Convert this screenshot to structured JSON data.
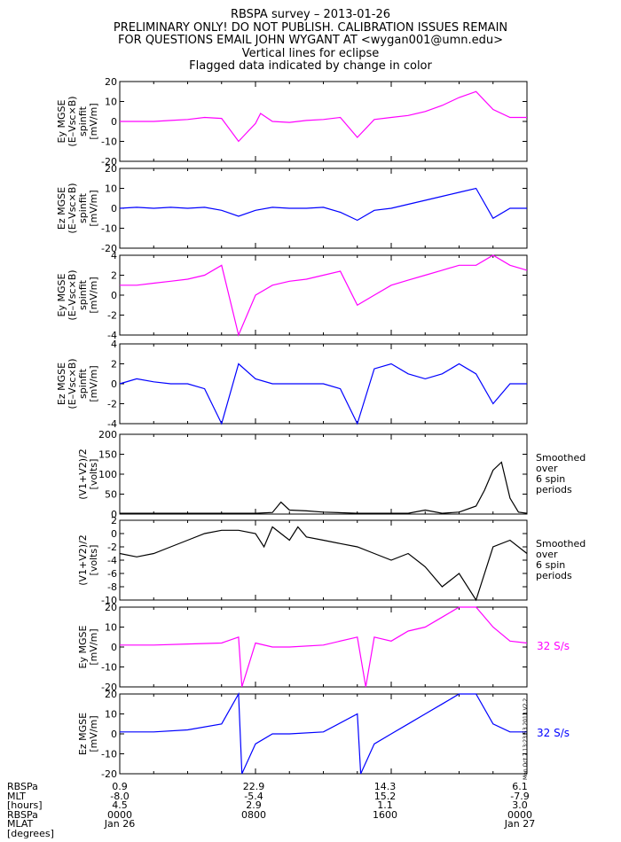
{
  "header": {
    "title": "RBSPA survey  – 2013-01-26",
    "line2": "PRELIMINARY ONLY! DO NOT PUBLISH. CALIBRATION ISSUES REMAIN",
    "line3": "FOR QUESTIONS EMAIL JOHN WYGANT AT <wygan001@umn.edu>",
    "line4": "Vertical lines for eclipse",
    "line5": "Flagged data indicated by change in color"
  },
  "colors": {
    "magenta": "#ff00ff",
    "blue": "#0000ff",
    "black": "#000000"
  },
  "chart_data": [
    {
      "type": "line",
      "ylabel": "Ey MGSE\n(E–Vsc×B)\nspinfit\n[mV/m]",
      "yticks": [
        -20,
        -10,
        0,
        10,
        20
      ],
      "ylim": [
        -20,
        20
      ],
      "color": "magenta",
      "series": [
        {
          "x": [
            0,
            1,
            2,
            3,
            4,
            5,
            6,
            7,
            8,
            8.3,
            9,
            10,
            11,
            12,
            13,
            14,
            15,
            16,
            17,
            18,
            19,
            20,
            21,
            22,
            23,
            24
          ],
          "values": [
            0,
            0,
            0,
            0.5,
            1,
            2,
            1.5,
            -10,
            -1,
            4,
            0,
            -0.5,
            0.5,
            1,
            2,
            -8,
            1,
            2,
            3,
            5,
            8,
            12,
            15,
            6,
            2,
            2
          ]
        }
      ]
    },
    {
      "type": "line",
      "ylabel": "Ez MGSE\n(E–Vsc×B)\nspinfit\n[mV/m]",
      "yticks": [
        -20,
        -10,
        0,
        10,
        20
      ],
      "ylim": [
        -20,
        20
      ],
      "color": "blue",
      "series": [
        {
          "x": [
            0,
            1,
            2,
            3,
            4,
            5,
            6,
            7,
            8,
            9,
            10,
            11,
            12,
            13,
            14,
            15,
            16,
            17,
            18,
            19,
            20,
            21,
            22,
            23,
            24
          ],
          "values": [
            0,
            0.5,
            0,
            0.5,
            0,
            0.5,
            -1,
            -4,
            -1,
            0.5,
            0,
            0,
            0.5,
            -2,
            -6,
            -1,
            0,
            2,
            4,
            6,
            8,
            10,
            -5,
            0,
            0
          ]
        }
      ]
    },
    {
      "type": "line",
      "ylabel": "Ey MGSE\n(E–Vsc×B)\nspinfit\n[mV/m]",
      "yticks": [
        -4,
        -2,
        0,
        2,
        4
      ],
      "ylim": [
        -4,
        4
      ],
      "color": "magenta",
      "series": [
        {
          "x": [
            0,
            1,
            2,
            3,
            4,
            5,
            6,
            7,
            8,
            9,
            10,
            11,
            12,
            13,
            14,
            15,
            16,
            17,
            18,
            19,
            20,
            21,
            22,
            23,
            24
          ],
          "values": [
            1,
            1,
            1.2,
            1.4,
            1.6,
            2,
            3,
            -4,
            0,
            1,
            1.4,
            1.6,
            2,
            2.4,
            -1,
            0,
            1,
            1.5,
            2,
            2.5,
            3,
            3,
            4,
            3,
            2.5
          ]
        }
      ]
    },
    {
      "type": "line",
      "ylabel": "Ez MGSE\n(E–Vsc×B)\nspinfit\n[mV/m]",
      "yticks": [
        -4,
        -2,
        0,
        2,
        4
      ],
      "ylim": [
        -4,
        4
      ],
      "color": "blue",
      "series": [
        {
          "x": [
            0,
            1,
            2,
            3,
            4,
            5,
            6,
            7,
            8,
            9,
            10,
            11,
            12,
            13,
            14,
            15,
            16,
            17,
            18,
            19,
            20,
            21,
            22,
            23,
            24
          ],
          "values": [
            0,
            0.5,
            0.2,
            0,
            0,
            -0.5,
            -4,
            2,
            0.5,
            0,
            0,
            0,
            0,
            -0.5,
            -4,
            1.5,
            2,
            1,
            0.5,
            1,
            2,
            1,
            -2,
            0,
            0
          ]
        }
      ]
    },
    {
      "type": "line",
      "ylabel": "(V1+V2)/2\n[volts]",
      "yticks": [
        0,
        50,
        100,
        150,
        200
      ],
      "ylim": [
        0,
        200
      ],
      "color": "black",
      "annotation": "Smoothed\nover\n6 spin\nperiods",
      "series": [
        {
          "x": [
            0,
            2,
            4,
            6,
            8,
            9,
            9.5,
            10,
            11,
            12,
            14,
            16,
            17,
            18,
            19,
            20,
            21,
            21.5,
            22,
            22.5,
            23,
            23.5,
            24
          ],
          "values": [
            2,
            2,
            2,
            2,
            2,
            4,
            30,
            10,
            8,
            5,
            2,
            2,
            2,
            10,
            2,
            5,
            20,
            60,
            110,
            130,
            40,
            5,
            2
          ]
        }
      ]
    },
    {
      "type": "line",
      "ylabel": "(V1+V2)/2\n[volts]",
      "yticks": [
        -10,
        -8,
        -6,
        -4,
        -2,
        0,
        2
      ],
      "ylim": [
        -10,
        2
      ],
      "color": "black",
      "annotation": "Smoothed\nover\n6 spin\nperiods",
      "series": [
        {
          "x": [
            0,
            1,
            2,
            3,
            4,
            5,
            6,
            7,
            8,
            8.5,
            9,
            9.5,
            10,
            10.5,
            11,
            12,
            13,
            14,
            15,
            16,
            17,
            18,
            19,
            20,
            21,
            22,
            23,
            24
          ],
          "values": [
            -3,
            -3.5,
            -3,
            -2,
            -1,
            0,
            0.5,
            0.5,
            0,
            -2,
            1,
            0,
            -1,
            1,
            -0.5,
            -1,
            -1.5,
            -2,
            -3,
            -4,
            -3,
            -5,
            -8,
            -6,
            -10,
            -2,
            -1,
            -3
          ]
        }
      ]
    },
    {
      "type": "line",
      "ylabel": "Ey MGSE\n[mV/m]",
      "yticks": [
        -20,
        -10,
        0,
        10,
        20
      ],
      "ylim": [
        -20,
        20
      ],
      "color": "magenta",
      "annotation": "32 S/s",
      "series": [
        {
          "x": [
            0,
            2,
            4,
            6,
            7,
            7.2,
            8,
            9,
            10,
            12,
            14,
            14.5,
            15,
            16,
            17,
            18,
            19,
            20,
            21,
            22,
            23,
            24
          ],
          "values": [
            1,
            1,
            1.5,
            2,
            5,
            -20,
            2,
            0,
            0,
            1,
            5,
            -20,
            5,
            3,
            8,
            10,
            15,
            20,
            20,
            10,
            3,
            2
          ]
        }
      ]
    },
    {
      "type": "line",
      "ylabel": "Ez MGSE\n[mV/m]",
      "yticks": [
        -20,
        -10,
        0,
        10,
        20
      ],
      "ylim": [
        -20,
        20
      ],
      "color": "blue",
      "annotation": "32 S/s",
      "series": [
        {
          "x": [
            0,
            2,
            4,
            6,
            7,
            7.2,
            8,
            9,
            10,
            12,
            14,
            14.2,
            15,
            16,
            17,
            18,
            19,
            20,
            21,
            22,
            23,
            24
          ],
          "values": [
            1,
            1,
            2,
            5,
            20,
            -20,
            -5,
            0,
            0,
            1,
            10,
            -20,
            -5,
            0,
            5,
            10,
            15,
            20,
            20,
            5,
            1,
            1
          ]
        }
      ]
    }
  ],
  "footer": {
    "labels": [
      "RBSPa",
      "MLT",
      "[hours]",
      "RBSPa",
      "MLAT",
      "[degrees]"
    ],
    "columns": [
      {
        "mlt_val": "0.9",
        "mlt": "-8.0",
        "hours": "4.5",
        "time": "0000",
        "date": "Jan 26"
      },
      {
        "mlt_val": "22.9",
        "mlt": "-5.4",
        "hours": "2.9",
        "time": "0800",
        "date": ""
      },
      {
        "mlt_val": "14.3",
        "mlt": "15.2",
        "hours": "1.1",
        "time": "1600",
        "date": ""
      },
      {
        "mlt_val": "6.1",
        "mlt": "-7.9",
        "hours": "3.0",
        "time": "0000",
        "date": "Jan 27"
      }
    ],
    "stamp": "Mon Oct  7 13:23:53 2013 V2.2"
  }
}
